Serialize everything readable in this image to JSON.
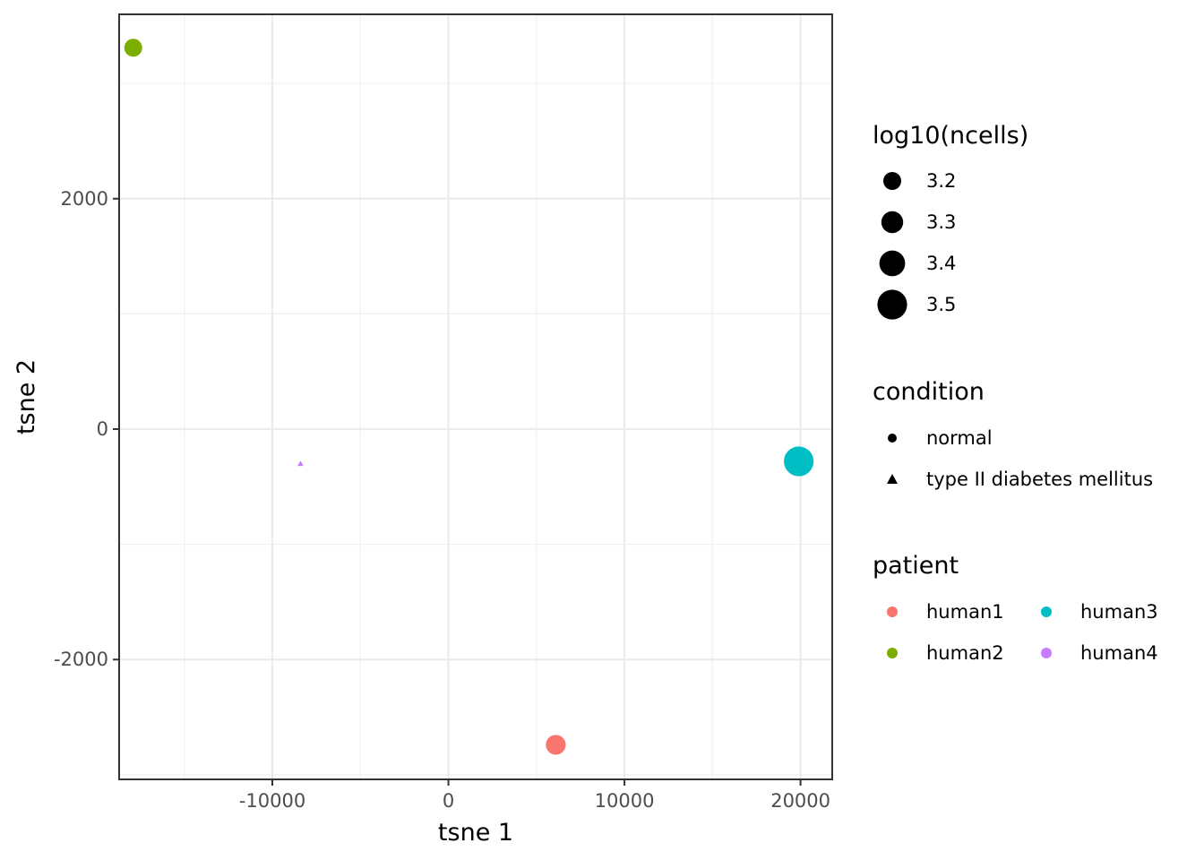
{
  "chart_data": {
    "type": "scatter",
    "xlabel": "tsne 1",
    "ylabel": "tsne 2",
    "xlim": [
      -18700,
      21800
    ],
    "ylim": [
      -3040,
      3600
    ],
    "x_ticks": [
      -10000,
      0,
      10000,
      20000
    ],
    "x_tick_labels": [
      "-10000",
      "0",
      "10000",
      "20000"
    ],
    "y_ticks": [
      2000,
      0,
      -2000
    ],
    "y_tick_labels": [
      "2000",
      "0",
      "-2000"
    ],
    "grid": true,
    "legend_position": "right",
    "points": [
      {
        "x": -17900,
        "y": 3310,
        "patient": "human2",
        "condition": "normal",
        "log10_ncells": 3.2
      },
      {
        "x": -8400,
        "y": -300,
        "patient": "human4",
        "condition": "type II diabetes mellitus",
        "log10_ncells": 2.8
      },
      {
        "x": 19900,
        "y": -280,
        "patient": "human3",
        "condition": "normal",
        "log10_ncells": 3.5
      },
      {
        "x": 6100,
        "y": -2740,
        "patient": "human1",
        "condition": "normal",
        "log10_ncells": 3.25
      }
    ],
    "legends": {
      "size": {
        "title": "log10(ncells)",
        "entries": [
          {
            "label": "3.2",
            "value": 3.2
          },
          {
            "label": "3.3",
            "value": 3.3
          },
          {
            "label": "3.4",
            "value": 3.4
          },
          {
            "label": "3.5",
            "value": 3.5
          }
        ]
      },
      "condition": {
        "title": "condition",
        "entries": [
          {
            "label": "normal",
            "shape": "circle"
          },
          {
            "label": "type II diabetes mellitus",
            "shape": "triangle"
          }
        ]
      },
      "patient": {
        "title": "patient",
        "entries": [
          {
            "label": "human1",
            "color": "#F8766D"
          },
          {
            "label": "human2",
            "color": "#7CAE00"
          },
          {
            "label": "human3",
            "color": "#00BFC4"
          },
          {
            "label": "human4",
            "color": "#C77CFF"
          }
        ]
      }
    }
  }
}
